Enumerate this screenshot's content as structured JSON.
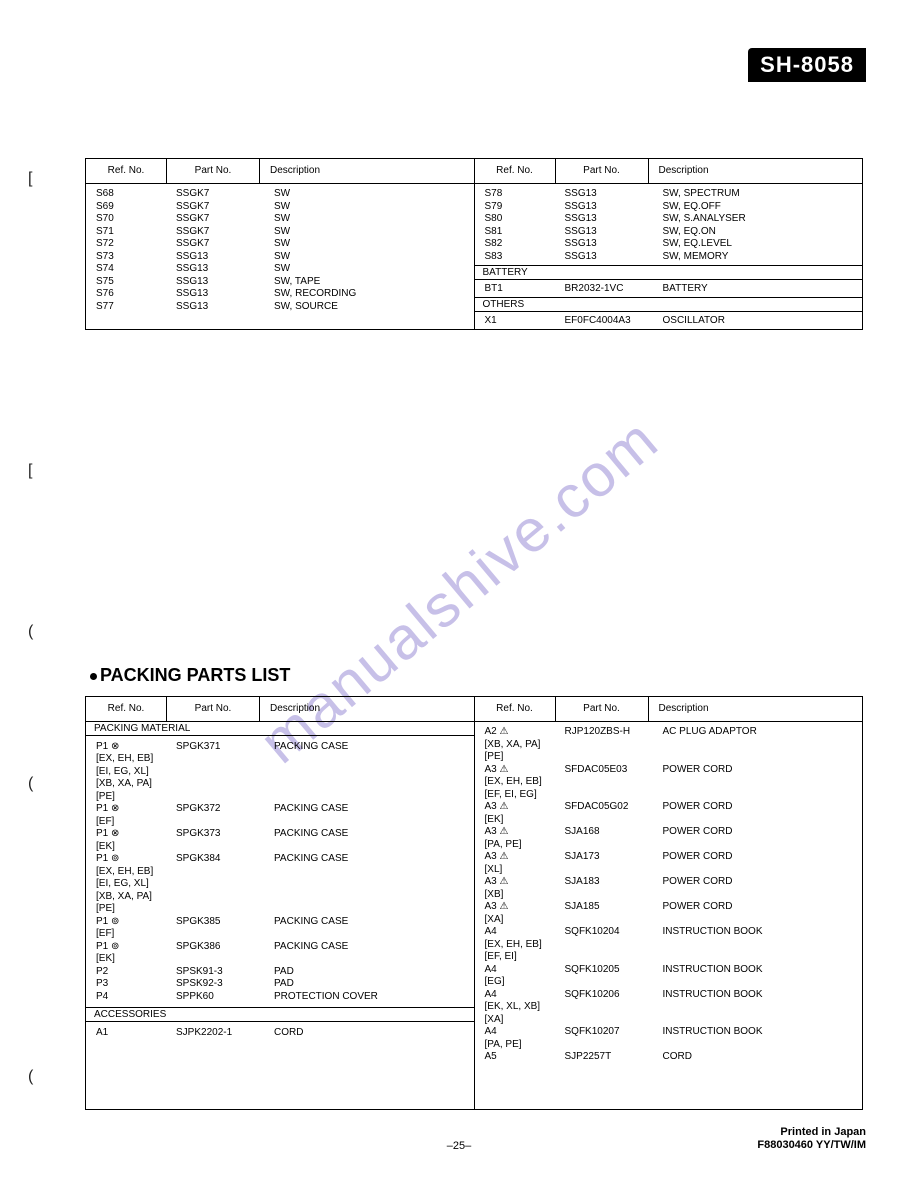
{
  "model_badge": "SH-8058",
  "watermark": "manualshive.com",
  "page_number": "–25–",
  "print_line1": "Printed in Japan",
  "print_line2": "F88030460 YY/TW/IM",
  "headers": {
    "ref": "Ref. No.",
    "part": "Part No.",
    "desc": "Description"
  },
  "table1": {
    "left_rows": [
      {
        "ref": "S68",
        "part": "SSGK7",
        "desc": "SW"
      },
      {
        "ref": "S69",
        "part": "SSGK7",
        "desc": "SW"
      },
      {
        "ref": "S70",
        "part": "SSGK7",
        "desc": "SW"
      },
      {
        "ref": "S71",
        "part": "SSGK7",
        "desc": "SW"
      },
      {
        "ref": "S72",
        "part": "SSGK7",
        "desc": "SW"
      },
      {
        "ref": "S73",
        "part": "SSG13",
        "desc": "SW"
      },
      {
        "ref": "S74",
        "part": "SSG13",
        "desc": "SW"
      },
      {
        "ref": "S75",
        "part": "SSG13",
        "desc": "SW, TAPE"
      },
      {
        "ref": "S76",
        "part": "SSG13",
        "desc": "SW, RECORDING"
      },
      {
        "ref": "S77",
        "part": "SSG13",
        "desc": "SW, SOURCE"
      }
    ],
    "right_rows": [
      {
        "ref": "S78",
        "part": "SSG13",
        "desc": "SW, SPECTRUM"
      },
      {
        "ref": "S79",
        "part": "SSG13",
        "desc": "SW, EQ.OFF"
      },
      {
        "ref": "S80",
        "part": "SSG13",
        "desc": "SW, S.ANALYSER"
      },
      {
        "ref": "S81",
        "part": "SSG13",
        "desc": "SW, EQ.ON"
      },
      {
        "ref": "S82",
        "part": "SSG13",
        "desc": "SW, EQ.LEVEL"
      },
      {
        "ref": "S83",
        "part": "SSG13",
        "desc": "SW, MEMORY"
      }
    ],
    "battery_label": "BATTERY",
    "battery_row": {
      "ref": "BT1",
      "part": "BR2032-1VC",
      "desc": "BATTERY"
    },
    "others_label": "OTHERS",
    "others_row": {
      "ref": "X1",
      "part": "EF0FC4004A3",
      "desc": "OSCILLATOR"
    }
  },
  "packing_title": "PACKING PARTS LIST",
  "table2": {
    "packing_label": "PACKING MATERIAL",
    "accessories_label": "ACCESSORIES",
    "left_rows_a": [
      {
        "ref": "P1      ⊗",
        "part": "SPGK371",
        "desc": "PACKING CASE"
      },
      {
        "ref": "[EX, EH, EB]",
        "part": "",
        "desc": ""
      },
      {
        "ref": "[EI, EG, XL]",
        "part": "",
        "desc": ""
      },
      {
        "ref": "[XB, XA, PA]",
        "part": "",
        "desc": ""
      },
      {
        "ref": "[PE]",
        "part": "",
        "desc": ""
      },
      {
        "ref": "P1      ⊗",
        "part": "SPGK372",
        "desc": "PACKING CASE"
      },
      {
        "ref": "[EF]",
        "part": "",
        "desc": ""
      },
      {
        "ref": "P1      ⊗",
        "part": "SPGK373",
        "desc": "PACKING CASE"
      },
      {
        "ref": "[EK]",
        "part": "",
        "desc": ""
      },
      {
        "ref": "P1      ⊚",
        "part": "SPGK384",
        "desc": "PACKING CASE"
      },
      {
        "ref": "[EX, EH, EB]",
        "part": "",
        "desc": ""
      },
      {
        "ref": "[EI, EG, XL]",
        "part": "",
        "desc": ""
      },
      {
        "ref": "[XB, XA, PA]",
        "part": "",
        "desc": ""
      },
      {
        "ref": "[PE]",
        "part": "",
        "desc": ""
      },
      {
        "ref": "P1      ⊚",
        "part": "SPGK385",
        "desc": "PACKING CASE"
      },
      {
        "ref": "[EF]",
        "part": "",
        "desc": ""
      },
      {
        "ref": "P1      ⊚",
        "part": "SPGK386",
        "desc": "PACKING CASE"
      },
      {
        "ref": "[EK]",
        "part": "",
        "desc": ""
      },
      {
        "ref": "P2",
        "part": "SPSK91-3",
        "desc": "PAD"
      },
      {
        "ref": "P3",
        "part": "SPSK92-3",
        "desc": "PAD"
      },
      {
        "ref": "P4",
        "part": "SPPK60",
        "desc": "PROTECTION COVER"
      }
    ],
    "left_rows_b": [
      {
        "ref": "A1",
        "part": "SJPK2202-1",
        "desc": "CORD"
      }
    ],
    "right_rows": [
      {
        "ref": "A2        ⚠",
        "part": "RJP120ZBS-H",
        "desc": "AC PLUG ADAPTOR"
      },
      {
        "ref": "[XB, XA, PA]",
        "part": "",
        "desc": ""
      },
      {
        "ref": "[PE]",
        "part": "",
        "desc": ""
      },
      {
        "ref": "A3        ⚠",
        "part": "SFDAC05E03",
        "desc": "POWER CORD"
      },
      {
        "ref": "[EX, EH, EB]",
        "part": "",
        "desc": ""
      },
      {
        "ref": "[EF, EI, EG]",
        "part": "",
        "desc": ""
      },
      {
        "ref": "A3        ⚠",
        "part": "SFDAC05G02",
        "desc": "POWER CORD"
      },
      {
        "ref": "[EK]",
        "part": "",
        "desc": ""
      },
      {
        "ref": "A3        ⚠",
        "part": "SJA168",
        "desc": "POWER CORD"
      },
      {
        "ref": "[PA, PE]",
        "part": "",
        "desc": ""
      },
      {
        "ref": "A3        ⚠",
        "part": "SJA173",
        "desc": "POWER CORD"
      },
      {
        "ref": "[XL]",
        "part": "",
        "desc": ""
      },
      {
        "ref": "A3        ⚠",
        "part": "SJA183",
        "desc": "POWER CORD"
      },
      {
        "ref": "[XB]",
        "part": "",
        "desc": ""
      },
      {
        "ref": "A3        ⚠",
        "part": "SJA185",
        "desc": "POWER CORD"
      },
      {
        "ref": "[XA]",
        "part": "",
        "desc": ""
      },
      {
        "ref": "A4",
        "part": "SQFK10204",
        "desc": "INSTRUCTION BOOK"
      },
      {
        "ref": "[EX, EH, EB]",
        "part": "",
        "desc": ""
      },
      {
        "ref": "[EF, EI]",
        "part": "",
        "desc": ""
      },
      {
        "ref": "A4",
        "part": "SQFK10205",
        "desc": "INSTRUCTION BOOK"
      },
      {
        "ref": "[EG]",
        "part": "",
        "desc": ""
      },
      {
        "ref": "A4",
        "part": "SQFK10206",
        "desc": "INSTRUCTION BOOK"
      },
      {
        "ref": "[EK, XL, XB]",
        "part": "",
        "desc": ""
      },
      {
        "ref": "[XA]",
        "part": "",
        "desc": ""
      },
      {
        "ref": "A4",
        "part": "SQFK10207",
        "desc": "INSTRUCTION BOOK"
      },
      {
        "ref": "[PA, PE]",
        "part": "",
        "desc": ""
      },
      {
        "ref": "A5",
        "part": "SJP2257T",
        "desc": "CORD"
      }
    ]
  }
}
